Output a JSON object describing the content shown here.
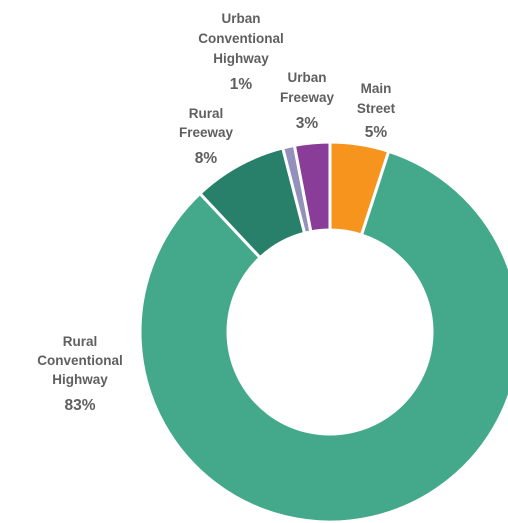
{
  "chart_data": {
    "type": "pie",
    "variant": "donut",
    "title": "",
    "legend": "none",
    "slices": [
      {
        "label": "Main Street",
        "value": 5,
        "value_label": "5%",
        "color": "#F7941D"
      },
      {
        "label": "Rural Conventional Highway",
        "value": 83,
        "value_label": "83%",
        "color": "#43A98A"
      },
      {
        "label": "Rural Freeway",
        "value": 8,
        "value_label": "8%",
        "color": "#28806A"
      },
      {
        "label": "Urban Conventional Highway",
        "value": 1,
        "value_label": "1%",
        "color": "#9391BB"
      },
      {
        "label": "Urban Freeway",
        "value": 3,
        "value_label": "3%",
        "color": "#8A3D98"
      }
    ]
  }
}
